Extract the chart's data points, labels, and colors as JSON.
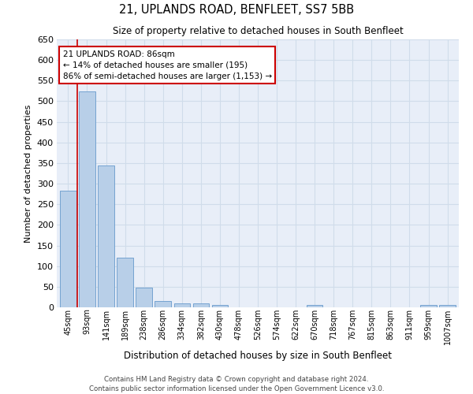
{
  "title": "21, UPLANDS ROAD, BENFLEET, SS7 5BB",
  "subtitle": "Size of property relative to detached houses in South Benfleet",
  "xlabel": "Distribution of detached houses by size in South Benfleet",
  "ylabel": "Number of detached properties",
  "categories": [
    "45sqm",
    "93sqm",
    "141sqm",
    "189sqm",
    "238sqm",
    "286sqm",
    "334sqm",
    "382sqm",
    "430sqm",
    "478sqm",
    "526sqm",
    "574sqm",
    "622sqm",
    "670sqm",
    "718sqm",
    "767sqm",
    "815sqm",
    "863sqm",
    "911sqm",
    "959sqm",
    "1007sqm"
  ],
  "values": [
    283,
    523,
    345,
    120,
    48,
    16,
    10,
    9,
    5,
    0,
    0,
    0,
    0,
    5,
    0,
    0,
    0,
    0,
    0,
    5,
    5
  ],
  "bar_color": "#b8cfe8",
  "bar_edge_color": "#6699cc",
  "grid_color": "#d0dcea",
  "bg_color": "#e8eef8",
  "annotation_box_color": "#ffffff",
  "annotation_box_edge": "#cc0000",
  "property_line_color": "#cc0000",
  "annotation_title": "21 UPLANDS ROAD: 86sqm",
  "annotation_line1": "← 14% of detached houses are smaller (195)",
  "annotation_line2": "86% of semi-detached houses are larger (1,153) →",
  "ylim": [
    0,
    650
  ],
  "yticks": [
    0,
    50,
    100,
    150,
    200,
    250,
    300,
    350,
    400,
    450,
    500,
    550,
    600,
    650
  ],
  "footer1": "Contains HM Land Registry data © Crown copyright and database right 2024.",
  "footer2": "Contains public sector information licensed under the Open Government Licence v3.0."
}
